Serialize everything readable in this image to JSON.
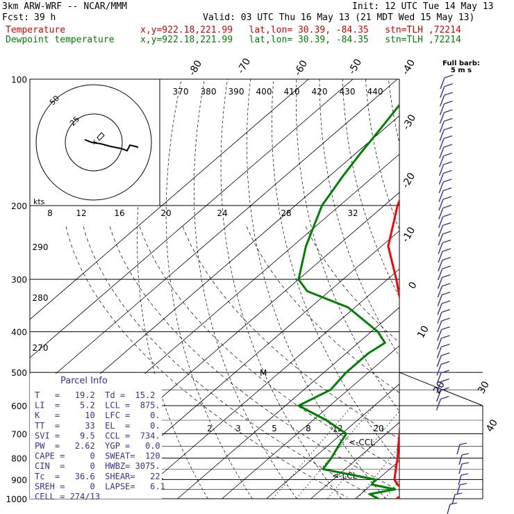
{
  "header": {
    "model": "3km ARW-WRF -- NCAR/MMM",
    "init": "Init: 12 UTC Tue 14 May 13",
    "fcst_label": "Fcst:",
    "fcst_value": "39 h",
    "valid": "Valid: 03 UTC Thu 16 May 13 (21 MDT Wed 15 May 13)",
    "temp_label": "Temperature",
    "temp_loc": "x,y=922.18,221.99   lat,lon= 30.39, -84.35   stn=TLH ,72214",
    "dew_label": "Dewpoint temperature",
    "dew_loc": "x,y=922.18,221.99   lat,lon= 30.39, -84.35   stn=TLH ,72214"
  },
  "barb_legend": {
    "line1": "Full barb:",
    "line2": "5 m s"
  },
  "hodograph": {
    "unit": "kts",
    "ring_labels": [
      "25",
      "50"
    ],
    "speed_ticks": [
      "8",
      "12",
      "16",
      "20",
      "24",
      "28",
      "32"
    ]
  },
  "parcel_info": {
    "title": "Parcel Info",
    "rows": [
      "T   =   19.2  Td =  15.2",
      "LI  =    5.2  LCL =  875.",
      "K   =     10  LFC =    0.",
      "TT  =     33  EL  =    0.",
      "SVI =    9.5  CCL =  734.",
      "PW  =   2.62  YGP =   0.0",
      "CAPE =     0  SWEAT=  120",
      "CIN  =     0  HWBZ= 3075.",
      "Tc  =   36.6  SHEAR=   22.",
      "SREH =     0  LAPSE=   6.1",
      "CELL = 274/13"
    ]
  },
  "markers": {
    "ccl": "<-CCL",
    "lcl": "<-LCL",
    "m": "M"
  },
  "colors": {
    "temperature": "#ff0000",
    "dewpoint": "#008000",
    "barbs": "#3b2fa0",
    "grid": "#000000"
  },
  "chart_data": {
    "type": "line",
    "title": "",
    "xlabel": "Temperature (C)",
    "ylabel": "Pressure (hPa)",
    "scale": "skew-T log-p",
    "pressure_levels": [
      1000,
      900,
      800,
      700,
      600,
      500,
      400,
      300,
      200,
      100
    ],
    "pressure_ticks": [
      "1000",
      "900",
      "800",
      "700",
      "600",
      "500",
      "400",
      "300",
      "200",
      "100"
    ],
    "ylim": [
      1000,
      100
    ],
    "isotherm_labels": [
      "-80",
      "-70",
      "-60",
      "-50",
      "-40",
      "-30",
      "-20",
      "-10",
      "0",
      "10",
      "20",
      "30",
      "40"
    ],
    "theta_labels": [
      "370",
      "380",
      "390",
      "400",
      "410",
      "420",
      "430",
      "440"
    ],
    "theta_side_labels": [
      "290",
      "280",
      "270"
    ],
    "mixing_ratio_labels": [
      "2",
      "3",
      "5",
      "8",
      "12",
      "20"
    ],
    "series": [
      {
        "name": "Temperature",
        "color": "#ff0000",
        "points": [
          {
            "p": 1000,
            "t": 19.2
          },
          {
            "p": 975,
            "t": 19.8
          },
          {
            "p": 950,
            "t": 18.2
          },
          {
            "p": 925,
            "t": 15.8
          },
          {
            "p": 900,
            "t": 13.8
          },
          {
            "p": 850,
            "t": 11.4
          },
          {
            "p": 800,
            "t": 8.9
          },
          {
            "p": 750,
            "t": 6.0
          },
          {
            "p": 700,
            "t": 3.0
          },
          {
            "p": 650,
            "t": -0.3
          },
          {
            "p": 600,
            "t": -3.5
          },
          {
            "p": 550,
            "t": -7.2
          },
          {
            "p": 500,
            "t": -11.5
          },
          {
            "p": 450,
            "t": -16.5
          },
          {
            "p": 400,
            "t": -22.0
          },
          {
            "p": 350,
            "t": -29.5
          },
          {
            "p": 300,
            "t": -38.0
          },
          {
            "p": 250,
            "t": -48.5
          },
          {
            "p": 200,
            "t": -57.0
          },
          {
            "p": 170,
            "t": -62.0
          },
          {
            "p": 150,
            "t": -65.0
          },
          {
            "p": 130,
            "t": -62.5
          },
          {
            "p": 110,
            "t": -58.5
          },
          {
            "p": 100,
            "t": -57.5
          }
        ]
      },
      {
        "name": "Dewpoint temperature",
        "color": "#008000",
        "points": [
          {
            "p": 1000,
            "t": 15.2
          },
          {
            "p": 975,
            "t": 12.0
          },
          {
            "p": 950,
            "t": 16.5
          },
          {
            "p": 925,
            "t": 10.0
          },
          {
            "p": 900,
            "t": 9.5
          },
          {
            "p": 850,
            "t": -5.0
          },
          {
            "p": 800,
            "t": -6.0
          },
          {
            "p": 750,
            "t": -7.5
          },
          {
            "p": 700,
            "t": -9.0
          },
          {
            "p": 650,
            "t": -17.0
          },
          {
            "p": 600,
            "t": -27.0
          },
          {
            "p": 550,
            "t": -24.0
          },
          {
            "p": 500,
            "t": -25.0
          },
          {
            "p": 450,
            "t": -25.0
          },
          {
            "p": 425,
            "t": -24.0
          },
          {
            "p": 400,
            "t": -28.5
          },
          {
            "p": 350,
            "t": -41.5
          },
          {
            "p": 320,
            "t": -55.0
          },
          {
            "p": 300,
            "t": -60.0
          },
          {
            "p": 250,
            "t": -67.0
          },
          {
            "p": 200,
            "t": -74.0
          },
          {
            "p": 170,
            "t": -77.0
          },
          {
            "p": 150,
            "t": -79.0
          },
          {
            "p": 130,
            "t": -81.0
          },
          {
            "p": 110,
            "t": -83.5
          },
          {
            "p": 100,
            "t": -84.0
          }
        ]
      }
    ],
    "grid": true
  }
}
